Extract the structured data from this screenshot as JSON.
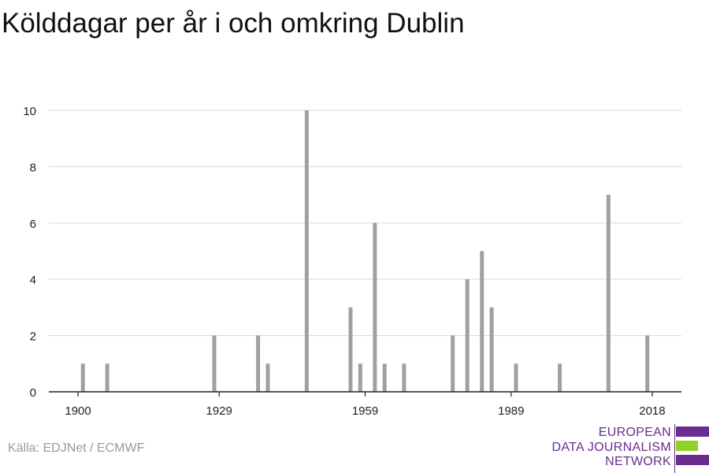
{
  "colors": {
    "bar": "#a0a0a0",
    "grid": "#dddddd",
    "axis": "#222222",
    "logo_purple": "#6b2b8f",
    "logo_green": "#8fd12a"
  },
  "chart_data": {
    "type": "bar",
    "title": "Kölddagar per år i och omkring Dublin",
    "xlabel": "",
    "ylabel": "",
    "xlim": [
      1894,
      2024
    ],
    "ylim": [
      0,
      10
    ],
    "grid": true,
    "x_ticks": [
      "1900",
      "1929",
      "1959",
      "1989",
      "2018"
    ],
    "x_tick_values": [
      1900,
      1929,
      1959,
      1989,
      2018
    ],
    "y_ticks": [
      "0",
      "2",
      "4",
      "6",
      "8",
      "10"
    ],
    "y_tick_values": [
      0,
      2,
      4,
      6,
      8,
      10
    ],
    "x": [
      1901,
      1906,
      1928,
      1937,
      1939,
      1947,
      1956,
      1958,
      1961,
      1963,
      1967,
      1977,
      1980,
      1983,
      1985,
      1990,
      1999,
      2009,
      2017
    ],
    "values": [
      1,
      1,
      2,
      2,
      1,
      10,
      3,
      1,
      6,
      1,
      1,
      2,
      4,
      5,
      3,
      1,
      1,
      7,
      2
    ]
  },
  "footer": {
    "source": "Källa: EDJNet / ECMWF",
    "logo_lines": [
      "EUROPEAN",
      "DATA JOURNALISM",
      "NETWORK"
    ]
  }
}
